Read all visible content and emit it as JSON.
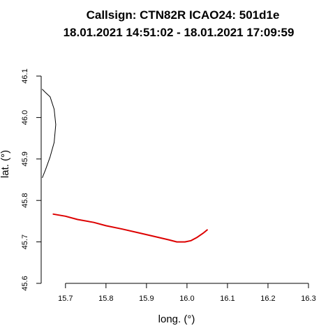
{
  "chart_data": {
    "type": "line",
    "title_line1": "Callsign: CTN82R    ICAO24: 501d1e",
    "title_line2": "18.01.2021 14:51:02 - 18.01.2021 17:09:59",
    "xlabel": "long. (°)",
    "ylabel": "lat. (°)",
    "xlim": [
      15.64,
      16.3
    ],
    "ylim": [
      45.6,
      46.1
    ],
    "x_ticks": [
      "15.7",
      "15.8",
      "15.9",
      "16.0",
      "16.1",
      "16.2",
      "16.3"
    ],
    "y_ticks": [
      "45.6",
      "45.7",
      "45.8",
      "45.9",
      "46.0",
      "46.1"
    ],
    "grid": false,
    "series": [
      {
        "color": "#000000",
        "x": [
          15.643,
          15.651,
          15.662,
          15.672,
          15.676,
          15.672,
          15.662,
          15.651,
          15.643
        ],
        "y": [
          46.068,
          46.06,
          46.05,
          46.02,
          45.983,
          45.94,
          45.905,
          45.875,
          45.855
        ]
      },
      {
        "color": "#dd0000",
        "x": [
          15.67,
          15.7,
          15.73,
          15.77,
          15.8,
          15.84,
          15.88,
          15.92,
          15.955,
          15.975,
          15.995,
          16.01,
          16.025,
          16.04,
          16.05
        ],
        "y": [
          45.767,
          45.762,
          45.754,
          45.747,
          45.739,
          45.731,
          45.722,
          45.713,
          45.705,
          45.7,
          45.7,
          45.703,
          45.711,
          45.721,
          45.729
        ]
      }
    ]
  }
}
